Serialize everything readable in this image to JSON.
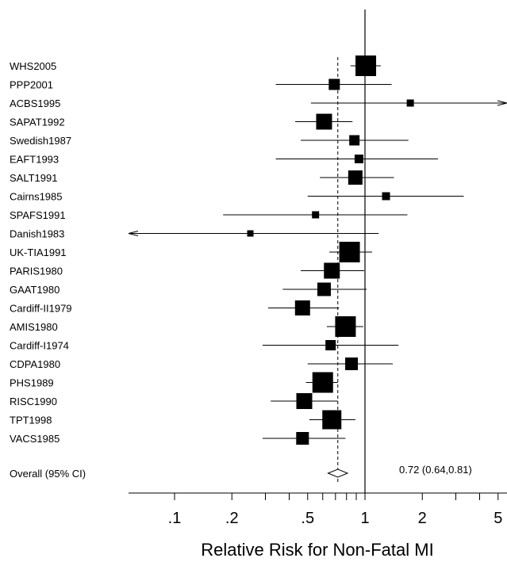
{
  "chart_data": {
    "type": "forest",
    "xlabel": "Relative Risk for Non-Fatal MI",
    "x_scale": "log",
    "xlim": [
      0.05,
      5.6
    ],
    "tick_labels": [
      ".1",
      ".2",
      ".5",
      "1",
      "2",
      "5"
    ],
    "tick_values": [
      0.1,
      0.2,
      0.5,
      1,
      2,
      5
    ],
    "null_line": 1,
    "overall_line": 0.72,
    "studies": [
      {
        "name": "WHS2005",
        "rr": 1.01,
        "lo": 0.84,
        "hi": 1.21,
        "weight": 10
      },
      {
        "name": "PPP2001",
        "rr": 0.69,
        "lo": 0.34,
        "hi": 1.38,
        "weight": 4
      },
      {
        "name": "ACBS1995",
        "rr": 1.73,
        "lo": 0.52,
        "hi": 5.8,
        "weight": 1.5
      },
      {
        "name": "SAPAT1992",
        "rr": 0.61,
        "lo": 0.43,
        "hi": 0.86,
        "weight": 7
      },
      {
        "name": "Swedish1987",
        "rr": 0.88,
        "lo": 0.46,
        "hi": 1.69,
        "weight": 3.5
      },
      {
        "name": "EAFT1993",
        "rr": 0.93,
        "lo": 0.34,
        "hi": 2.42,
        "weight": 2.5
      },
      {
        "name": "SALT1991",
        "rr": 0.89,
        "lo": 0.58,
        "hi": 1.42,
        "weight": 6
      },
      {
        "name": "Cairns1985",
        "rr": 1.29,
        "lo": 0.5,
        "hi": 3.3,
        "weight": 2
      },
      {
        "name": "SPAFS1991",
        "rr": 0.55,
        "lo": 0.18,
        "hi": 1.67,
        "weight": 1.5
      },
      {
        "name": "Danish1983",
        "rr": 0.25,
        "lo": 0.035,
        "hi": 1.18,
        "weight": 1
      },
      {
        "name": "UK-TIA1991",
        "rr": 0.83,
        "lo": 0.65,
        "hi": 1.09,
        "weight": 10
      },
      {
        "name": "PARIS1980",
        "rr": 0.67,
        "lo": 0.46,
        "hi": 0.99,
        "weight": 7
      },
      {
        "name": "GAAT1980",
        "rr": 0.61,
        "lo": 0.37,
        "hi": 1.02,
        "weight": 5.5
      },
      {
        "name": "Cardiff-II1979",
        "rr": 0.47,
        "lo": 0.31,
        "hi": 0.73,
        "weight": 6.5
      },
      {
        "name": "AMIS1980",
        "rr": 0.79,
        "lo": 0.63,
        "hi": 0.98,
        "weight": 10
      },
      {
        "name": "Cardiff-I1974",
        "rr": 0.66,
        "lo": 0.29,
        "hi": 1.5,
        "weight": 3.5
      },
      {
        "name": "CDPA1980",
        "rr": 0.85,
        "lo": 0.5,
        "hi": 1.4,
        "weight": 5
      },
      {
        "name": "PHS1989",
        "rr": 0.6,
        "lo": 0.49,
        "hi": 0.72,
        "weight": 10
      },
      {
        "name": "RISC1990",
        "rr": 0.48,
        "lo": 0.32,
        "hi": 0.72,
        "weight": 7
      },
      {
        "name": "TPT1998",
        "rr": 0.67,
        "lo": 0.51,
        "hi": 0.89,
        "weight": 9
      },
      {
        "name": "VACS1985",
        "rr": 0.47,
        "lo": 0.29,
        "hi": 0.79,
        "weight": 5
      }
    ],
    "overall": {
      "label": "Overall (95% CI)",
      "rr": 0.72,
      "lo": 0.64,
      "hi": 0.81,
      "text": "0.72 (0.64,0.81)"
    }
  }
}
